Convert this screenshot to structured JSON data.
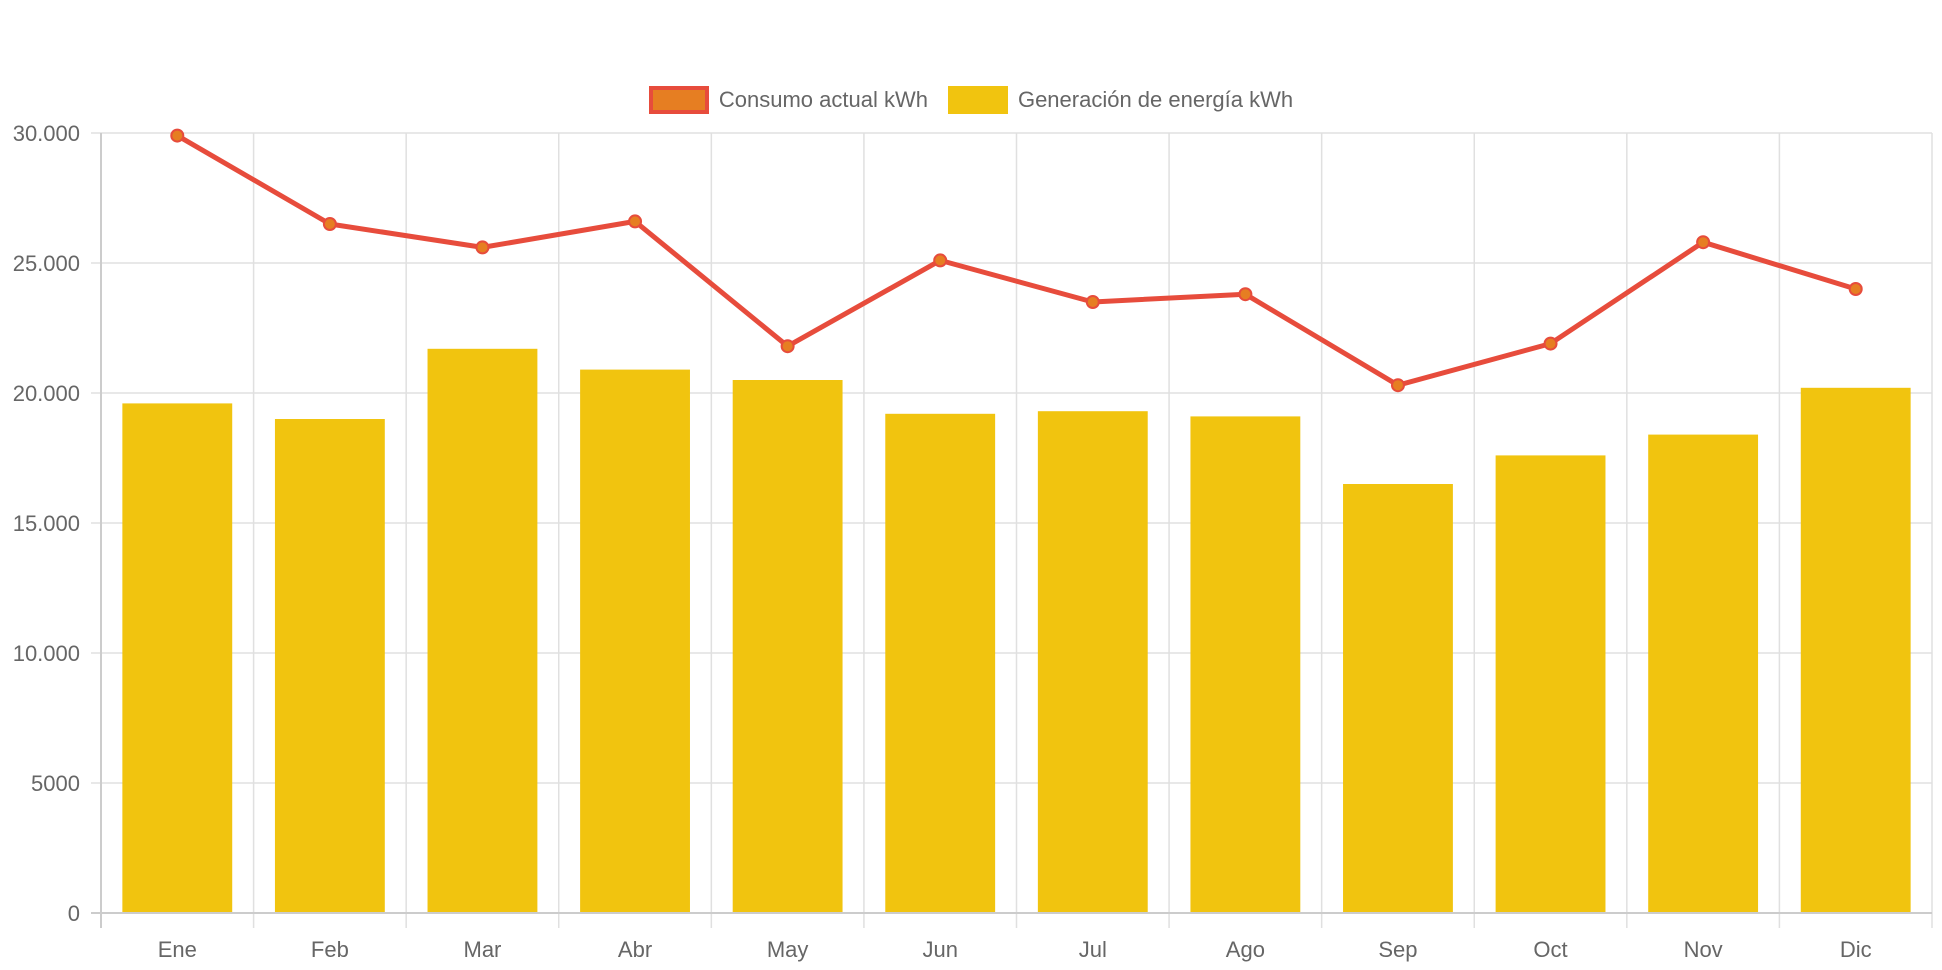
{
  "chart_data": {
    "type": "bar",
    "title": "",
    "xlabel": "",
    "ylabel": "",
    "categories": [
      "Ene",
      "Feb",
      "Mar",
      "Abr",
      "May",
      "Jun",
      "Jul",
      "Ago",
      "Sep",
      "Oct",
      "Nov",
      "Dic"
    ],
    "ylim": [
      0,
      30000
    ],
    "yticks": [
      0,
      5000,
      10000,
      15000,
      20000,
      25000,
      30000
    ],
    "ytick_labels": [
      "0",
      "5000",
      "10.000",
      "15.000",
      "20.000",
      "25.000",
      "30.000"
    ],
    "grid": true,
    "legend_position": "top-center",
    "series": [
      {
        "name": "Consumo actual kWh",
        "type": "line",
        "color": "#E74C3C",
        "point_color": "#E67E22",
        "values": [
          29900,
          26500,
          25600,
          26600,
          21800,
          25100,
          23500,
          23800,
          20300,
          21900,
          25800,
          24000
        ]
      },
      {
        "name": "Generación de energía kWh",
        "type": "bar",
        "color": "#F1C40F",
        "values": [
          19600,
          19000,
          21700,
          20900,
          20500,
          19200,
          19300,
          19100,
          16500,
          17600,
          18400,
          20200
        ]
      }
    ]
  },
  "legend": {
    "items": [
      {
        "label": "Consumo actual kWh",
        "fill": "#E67E22",
        "border": "#E74C3C"
      },
      {
        "label": "Generación de energía kWh",
        "fill": "#F1C40F",
        "border": "#F1C40F"
      }
    ]
  },
  "colors": {
    "grid": "#E0E0E0",
    "axis": "#CCCCCC",
    "text": "#666666"
  }
}
